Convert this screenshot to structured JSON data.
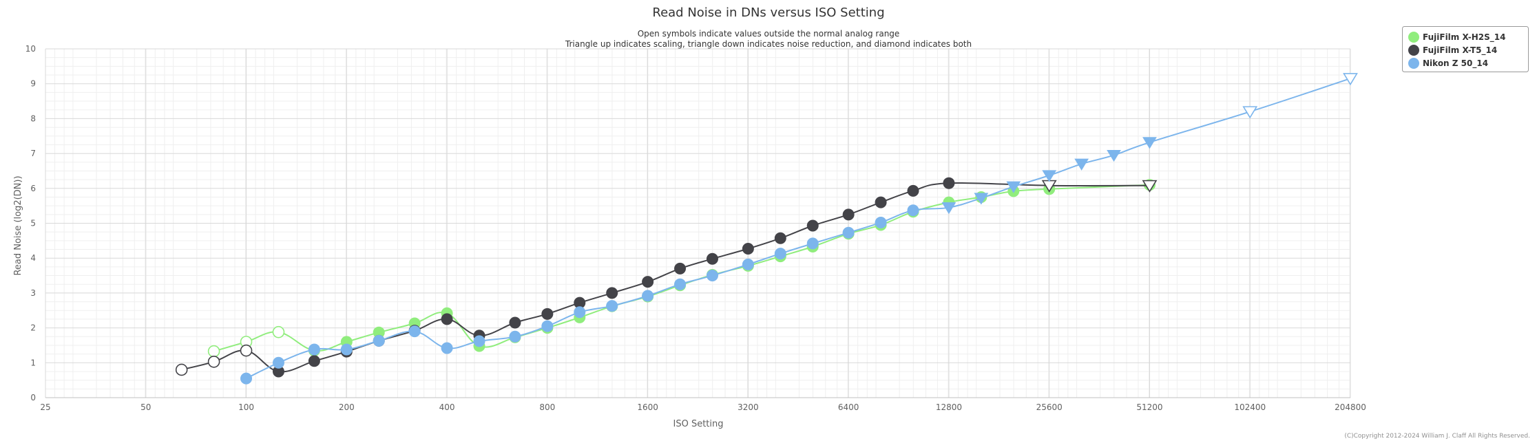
{
  "chart_data": {
    "type": "line",
    "title": "Read Noise in DNs versus ISO Setting",
    "subtitle_lines": [
      "Open symbols indicate values outside the normal analog range",
      "Triangle up indicates scaling, triangle down indicates noise reduction, and diamond indicates both"
    ],
    "xlabel": "ISO Setting",
    "ylabel": "Read Noise (log2(DN))",
    "x_scale": "log2",
    "x_ticks": [
      25,
      50,
      100,
      200,
      400,
      800,
      1600,
      3200,
      6400,
      12800,
      25600,
      51200,
      102400,
      204800
    ],
    "x_tick_labels": [
      "25",
      "50",
      "100",
      "200",
      "400",
      "800",
      "1600",
      "3200",
      "6400",
      "12800",
      "25600",
      "51200",
      "102400",
      "204800"
    ],
    "xlim": [
      25,
      204800
    ],
    "ylim": [
      0,
      10
    ],
    "y_ticks": [
      0,
      1,
      2,
      3,
      4,
      5,
      6,
      7,
      8,
      9,
      10
    ],
    "y_tick_labels": [
      "0",
      "1",
      "2",
      "3",
      "4",
      "5",
      "6",
      "7",
      "8",
      "9",
      "10"
    ],
    "grid": true,
    "legend_position": "top-right outside",
    "credit": "(C)Copyright 2012-2024 William J. Claff All Rights Reserved.",
    "series": [
      {
        "name": "FujiFilm X-H2S_14",
        "color": "#90ed7d",
        "points": [
          {
            "x": 80,
            "y": 1.33,
            "marker": "open-circle"
          },
          {
            "x": 100,
            "y": 1.6,
            "marker": "open-circle"
          },
          {
            "x": 125,
            "y": 1.88,
            "marker": "open-circle"
          },
          {
            "x": 160,
            "y": 1.35,
            "marker": "circle"
          },
          {
            "x": 200,
            "y": 1.6,
            "marker": "circle"
          },
          {
            "x": 250,
            "y": 1.87,
            "marker": "circle"
          },
          {
            "x": 320,
            "y": 2.13,
            "marker": "circle"
          },
          {
            "x": 400,
            "y": 2.42,
            "marker": "circle"
          },
          {
            "x": 500,
            "y": 1.48,
            "marker": "circle"
          },
          {
            "x": 640,
            "y": 1.73,
            "marker": "circle"
          },
          {
            "x": 800,
            "y": 2.0,
            "marker": "circle"
          },
          {
            "x": 1000,
            "y": 2.3,
            "marker": "circle"
          },
          {
            "x": 1250,
            "y": 2.62,
            "marker": "circle"
          },
          {
            "x": 1600,
            "y": 2.9,
            "marker": "circle"
          },
          {
            "x": 2000,
            "y": 3.22,
            "marker": "circle"
          },
          {
            "x": 2500,
            "y": 3.52,
            "marker": "circle"
          },
          {
            "x": 3200,
            "y": 3.78,
            "marker": "circle"
          },
          {
            "x": 4000,
            "y": 4.05,
            "marker": "circle"
          },
          {
            "x": 5000,
            "y": 4.33,
            "marker": "circle"
          },
          {
            "x": 6400,
            "y": 4.7,
            "marker": "circle"
          },
          {
            "x": 8000,
            "y": 4.95,
            "marker": "circle"
          },
          {
            "x": 10000,
            "y": 5.33,
            "marker": "circle"
          },
          {
            "x": 12800,
            "y": 5.6,
            "marker": "circle"
          },
          {
            "x": 16000,
            "y": 5.75,
            "marker": "circle"
          },
          {
            "x": 20000,
            "y": 5.92,
            "marker": "circle"
          },
          {
            "x": 25600,
            "y": 5.98,
            "marker": "circle"
          },
          {
            "x": 51200,
            "y": 6.1,
            "marker": "circle"
          }
        ]
      },
      {
        "name": "FujiFilm X-T5_14",
        "color": "#434348",
        "points": [
          {
            "x": 64,
            "y": 0.8,
            "marker": "open-circle"
          },
          {
            "x": 80,
            "y": 1.03,
            "marker": "open-circle"
          },
          {
            "x": 100,
            "y": 1.35,
            "marker": "open-circle"
          },
          {
            "x": 125,
            "y": 0.75,
            "marker": "circle"
          },
          {
            "x": 160,
            "y": 1.05,
            "marker": "circle"
          },
          {
            "x": 200,
            "y": 1.32,
            "marker": "circle"
          },
          {
            "x": 250,
            "y": 1.63,
            "marker": "circle"
          },
          {
            "x": 320,
            "y": 1.92,
            "marker": "circle"
          },
          {
            "x": 400,
            "y": 2.25,
            "marker": "circle"
          },
          {
            "x": 500,
            "y": 1.78,
            "marker": "circle"
          },
          {
            "x": 640,
            "y": 2.15,
            "marker": "circle"
          },
          {
            "x": 800,
            "y": 2.4,
            "marker": "circle"
          },
          {
            "x": 1000,
            "y": 2.72,
            "marker": "circle"
          },
          {
            "x": 1250,
            "y": 3.0,
            "marker": "circle"
          },
          {
            "x": 1600,
            "y": 3.32,
            "marker": "circle"
          },
          {
            "x": 2000,
            "y": 3.7,
            "marker": "circle"
          },
          {
            "x": 2500,
            "y": 3.98,
            "marker": "circle"
          },
          {
            "x": 3200,
            "y": 4.27,
            "marker": "circle"
          },
          {
            "x": 4000,
            "y": 4.57,
            "marker": "circle"
          },
          {
            "x": 5000,
            "y": 4.93,
            "marker": "circle"
          },
          {
            "x": 6400,
            "y": 5.25,
            "marker": "circle"
          },
          {
            "x": 8000,
            "y": 5.6,
            "marker": "circle"
          },
          {
            "x": 10000,
            "y": 5.93,
            "marker": "circle"
          },
          {
            "x": 12800,
            "y": 6.15,
            "marker": "circle"
          },
          {
            "x": 25600,
            "y": 6.08,
            "marker": "open-triangle-down"
          },
          {
            "x": 51200,
            "y": 6.08,
            "marker": "open-triangle-down"
          }
        ]
      },
      {
        "name": "Nikon Z 50_14",
        "color": "#7cb5ec",
        "points": [
          {
            "x": 100,
            "y": 0.55,
            "marker": "circle"
          },
          {
            "x": 125,
            "y": 1.0,
            "marker": "circle"
          },
          {
            "x": 160,
            "y": 1.38,
            "marker": "circle"
          },
          {
            "x": 200,
            "y": 1.38,
            "marker": "circle"
          },
          {
            "x": 250,
            "y": 1.63,
            "marker": "circle"
          },
          {
            "x": 320,
            "y": 1.9,
            "marker": "circle"
          },
          {
            "x": 400,
            "y": 1.42,
            "marker": "circle"
          },
          {
            "x": 500,
            "y": 1.62,
            "marker": "circle"
          },
          {
            "x": 640,
            "y": 1.75,
            "marker": "circle"
          },
          {
            "x": 800,
            "y": 2.05,
            "marker": "circle"
          },
          {
            "x": 1000,
            "y": 2.45,
            "marker": "circle"
          },
          {
            "x": 1250,
            "y": 2.63,
            "marker": "circle"
          },
          {
            "x": 1600,
            "y": 2.92,
            "marker": "circle"
          },
          {
            "x": 2000,
            "y": 3.25,
            "marker": "circle"
          },
          {
            "x": 2500,
            "y": 3.5,
            "marker": "circle"
          },
          {
            "x": 3200,
            "y": 3.82,
            "marker": "circle"
          },
          {
            "x": 4000,
            "y": 4.13,
            "marker": "circle"
          },
          {
            "x": 5000,
            "y": 4.42,
            "marker": "circle"
          },
          {
            "x": 6400,
            "y": 4.73,
            "marker": "circle"
          },
          {
            "x": 8000,
            "y": 5.02,
            "marker": "circle"
          },
          {
            "x": 10000,
            "y": 5.37,
            "marker": "circle"
          },
          {
            "x": 12800,
            "y": 5.45,
            "marker": "triangle-down"
          },
          {
            "x": 16000,
            "y": 5.72,
            "marker": "triangle-down"
          },
          {
            "x": 20000,
            "y": 6.05,
            "marker": "triangle-down"
          },
          {
            "x": 25600,
            "y": 6.37,
            "marker": "triangle-down"
          },
          {
            "x": 32000,
            "y": 6.7,
            "marker": "triangle-down"
          },
          {
            "x": 40000,
            "y": 6.95,
            "marker": "triangle-down"
          },
          {
            "x": 51200,
            "y": 7.32,
            "marker": "triangle-down"
          },
          {
            "x": 102400,
            "y": 8.2,
            "marker": "open-triangle-down"
          },
          {
            "x": 204800,
            "y": 9.15,
            "marker": "open-triangle-down"
          }
        ]
      }
    ]
  }
}
